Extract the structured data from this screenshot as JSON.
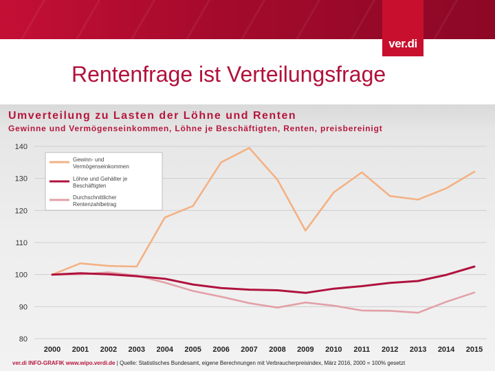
{
  "slide": {
    "title": "Rentenfrage ist Verteilungsfrage",
    "logo": "ver.di"
  },
  "chart_data": {
    "type": "line",
    "title": "Umverteilung zu Lasten der Löhne und Renten",
    "subtitle": "Gewinne und Vermögenseinkommen, Löhne je Beschäftigten, Renten, preisbereinigt",
    "xlabel": "",
    "ylabel": "",
    "x": [
      "2000",
      "2001",
      "2002",
      "2003",
      "2004",
      "2005",
      "2006",
      "2007",
      "2008",
      "2009",
      "2010",
      "2011",
      "2012",
      "2013",
      "2014",
      "2015"
    ],
    "ylim": [
      80,
      140
    ],
    "yticks": [
      80,
      90,
      100,
      110,
      120,
      130,
      140
    ],
    "grid": true,
    "legend_position": "top-left",
    "series": [
      {
        "name": "Gewinn- und Vermögenseinkommen",
        "color": "#f4b183",
        "values": [
          100,
          103.5,
          102.7,
          102.5,
          117.8,
          121.4,
          135,
          139.5,
          129.6,
          113.7,
          125.6,
          131.9,
          124.5,
          123.4,
          126.9,
          132.1
        ]
      },
      {
        "name": "Löhne und Gehälter je Beschäftigten",
        "color": "#b0123e",
        "values": [
          100,
          100.4,
          100.1,
          99.5,
          98.7,
          96.9,
          95.8,
          95.3,
          95.1,
          94.3,
          95.6,
          96.4,
          97.4,
          98.0,
          99.9,
          102.5
        ]
      },
      {
        "name": "Durchschnittlicher Rentenzahlbetrag",
        "color": "#e2a0a6",
        "values": [
          100,
          100.1,
          100.7,
          99.7,
          97.5,
          94.9,
          93.1,
          91.1,
          89.7,
          91.3,
          90.3,
          88.8,
          88.7,
          88.1,
          91.5,
          94.4
        ]
      }
    ]
  },
  "footer": {
    "brand": "ver.di INFO-GRAFIK www.wipo.verdi.de",
    "source": "| Quelle: Statistisches Bundesamt, eigene Berechnungen mit Verbraucherpreisindex, März 2016, 2000 = 100% gesetzt"
  }
}
